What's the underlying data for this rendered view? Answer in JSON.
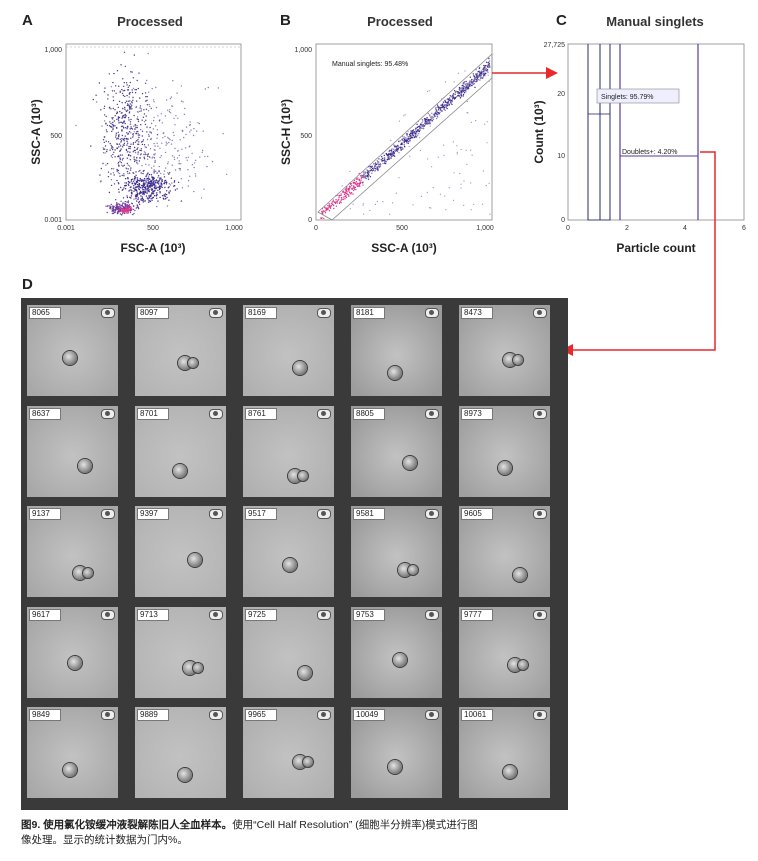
{
  "panels": {
    "a": {
      "letter": "A",
      "title": "Processed",
      "xlabel": "FSC-A (10³)",
      "ylabel": "SSC-A (10³)",
      "xticks": [
        "0.001",
        "500",
        "1,000"
      ],
      "yticks": [
        "1,000",
        "500",
        "0.001"
      ]
    },
    "b": {
      "letter": "B",
      "title": "Processed",
      "xlabel": "SSC-A (10³)",
      "ylabel": "SSC-H (10³)",
      "xticks": [
        "0",
        "500",
        "1,000"
      ],
      "yticks": [
        "1,000",
        "500",
        "0"
      ],
      "gate_label": "Manual singlets: 95.48%"
    },
    "c": {
      "letter": "C",
      "title": "Manual singlets",
      "xlabel": "Particle count",
      "ylabel": "Count (10³)",
      "xticks": [
        "0",
        "2",
        "4",
        "6"
      ],
      "yticks": [
        "27,725",
        "20",
        "10",
        "0"
      ],
      "singlets_label": "Singlets: 95.79%",
      "doublets_label": "Doublets+: 4.20%"
    },
    "d": {
      "letter": "D"
    }
  },
  "tiles": [
    "8065",
    "8097",
    "8169",
    "8181",
    "8473",
    "8637",
    "8701",
    "8761",
    "8805",
    "8973",
    "9137",
    "9397",
    "9517",
    "9581",
    "9605",
    "9617",
    "9713",
    "9725",
    "9753",
    "9777",
    "9849",
    "9889",
    "9965",
    "10049",
    "10061"
  ],
  "caption": {
    "bold": "图9. 使用氯化铵缓冲液裂解陈旧人全血样本。",
    "line1": "使用“Cell Half Resolution” (细胞半分辨率)模式进行图",
    "line2": "像处理。显示的统计数据为门内%。"
  },
  "colors": {
    "arrow": "#e8282b",
    "dots": "#3b2a8c",
    "hot": "#e0388a",
    "bar": "#3a3a9a"
  }
}
